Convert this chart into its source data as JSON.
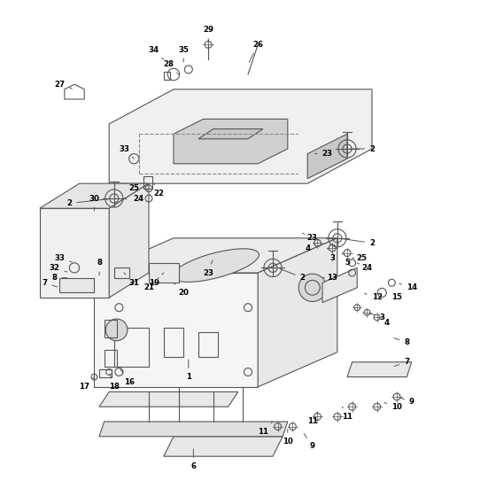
{
  "title": "",
  "bg_color": "#ffffff",
  "line_color": "#555555",
  "text_color": "#000000",
  "fig_width": 5.6,
  "fig_height": 5.6,
  "dpi": 100
}
